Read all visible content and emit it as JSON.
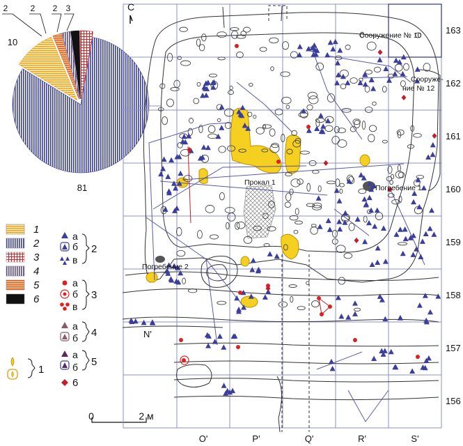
{
  "pie": {
    "slices": [
      {
        "category": "2",
        "value": 81,
        "color": "#3b3f9c",
        "pattern": "vertical-hatch"
      },
      {
        "category": "1",
        "value": 10,
        "color": "#f0a020",
        "pattern": "horizontal-hatch"
      },
      {
        "category": "5",
        "value": 2,
        "color": "#e05a10",
        "pattern": "horizontal-hatch"
      },
      {
        "category": "4",
        "value": 2,
        "color": "#5a4a8a",
        "pattern": "vertical-hatch"
      },
      {
        "category": "6",
        "value": 2,
        "color": "#111111",
        "pattern": "solid"
      },
      {
        "category": "3",
        "value": 3,
        "color": "#e02020",
        "pattern": "grid"
      }
    ],
    "labels": [
      "81",
      "10",
      "2",
      "2",
      "2",
      "3"
    ]
  },
  "legend": {
    "patterns": [
      {
        "num": "1",
        "color": "#f0a020"
      },
      {
        "num": "2",
        "color": "#3b3f9c"
      },
      {
        "num": "3",
        "color": "#e02020"
      },
      {
        "num": "4",
        "color": "#5a4a8a"
      },
      {
        "num": "5",
        "color": "#e05a10"
      },
      {
        "num": "6",
        "color": "#111111"
      }
    ],
    "symbol_groups": [
      {
        "num": "2",
        "subs": [
          "а",
          "б",
          "в"
        ]
      },
      {
        "num": "3",
        "subs": [
          "а",
          "б",
          "в"
        ]
      },
      {
        "num": "4",
        "subs": [
          "а",
          "б"
        ]
      },
      {
        "num": "5",
        "subs": [
          "а",
          "б"
        ]
      }
    ],
    "hearth_num": "1",
    "diamond_num": "6"
  },
  "map": {
    "north": "С",
    "columns": [
      "O'",
      "P'",
      "Q'",
      "R'",
      "S'"
    ],
    "rows": [
      "163",
      "162",
      "161",
      "160",
      "159",
      "158",
      "157",
      "156"
    ],
    "side_label": "N'",
    "features": {
      "structure_10": "Сооружение № 10",
      "structure_12_a": "Сооруже-",
      "structure_12_b": "ние № 12",
      "prokal": "Прокал 1",
      "burial_1": "Погребение 1",
      "burial_2": "Погребение 2"
    },
    "scale": {
      "zero": "0",
      "end": "2 м"
    }
  },
  "colors": {
    "blue": "#3b3f9c",
    "yellow": "#f5d020",
    "red": "#e02020",
    "grid": "#8a8fd0"
  }
}
